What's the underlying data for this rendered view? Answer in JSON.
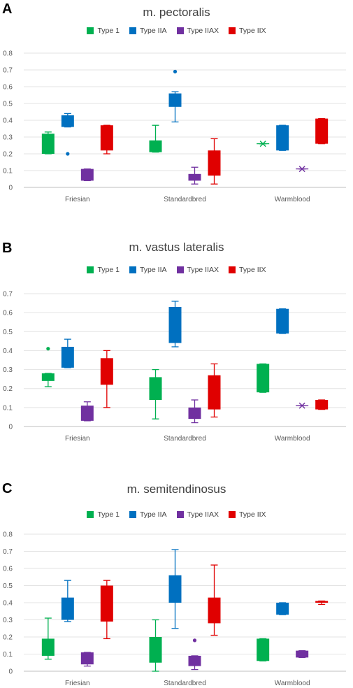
{
  "colors": {
    "type1": "#00b050",
    "type2a": "#0070c0",
    "type2ax": "#7030a0",
    "type2x": "#e00000"
  },
  "chart_data": [
    {
      "type": "box",
      "panel_label": "A",
      "title": "m. pectoralis",
      "categories": [
        "Friesian",
        "Standardbred",
        "Warmblood"
      ],
      "ylim": [
        0,
        0.8
      ],
      "yticks": [
        "0",
        "0.1",
        "0.2",
        "0.3",
        "0.4",
        "0.5",
        "0.6",
        "0.7",
        "0.8"
      ],
      "grid": true,
      "legend_position": "top",
      "series": [
        {
          "name": "Type 1",
          "color": "#00b050",
          "boxes": [
            {
              "min": 0.2,
              "q1": 0.2,
              "q3": 0.32,
              "max": 0.33,
              "outliers": []
            },
            {
              "min": 0.21,
              "q1": 0.21,
              "q3": 0.28,
              "max": 0.37,
              "outliers": []
            },
            {
              "min": 0.26,
              "q1": 0.26,
              "q3": 0.26,
              "max": 0.26,
              "outliers": []
            }
          ]
        },
        {
          "name": "Type IIA",
          "color": "#0070c0",
          "boxes": [
            {
              "min": 0.36,
              "q1": 0.36,
              "q3": 0.43,
              "max": 0.44,
              "outliers": [
                0.2
              ]
            },
            {
              "min": 0.39,
              "q1": 0.48,
              "q3": 0.56,
              "max": 0.57,
              "outliers": [
                0.69
              ]
            },
            {
              "min": 0.22,
              "q1": 0.22,
              "q3": 0.37,
              "max": 0.37,
              "outliers": []
            }
          ]
        },
        {
          "name": "Type IIAX",
          "color": "#7030a0",
          "boxes": [
            {
              "min": 0.04,
              "q1": 0.04,
              "q3": 0.11,
              "max": 0.11,
              "outliers": []
            },
            {
              "min": 0.02,
              "q1": 0.04,
              "q3": 0.08,
              "max": 0.12,
              "outliers": []
            },
            {
              "min": 0.11,
              "q1": 0.11,
              "q3": 0.11,
              "max": 0.11,
              "outliers": []
            }
          ]
        },
        {
          "name": "Type IIX",
          "color": "#e00000",
          "boxes": [
            {
              "min": 0.2,
              "q1": 0.22,
              "q3": 0.37,
              "max": 0.37,
              "outliers": []
            },
            {
              "min": 0.02,
              "q1": 0.07,
              "q3": 0.22,
              "max": 0.29,
              "outliers": []
            },
            {
              "min": 0.26,
              "q1": 0.26,
              "q3": 0.41,
              "max": 0.41,
              "outliers": []
            }
          ]
        }
      ]
    },
    {
      "type": "box",
      "panel_label": "B",
      "title": "m. vastus lateralis",
      "categories": [
        "Friesian",
        "Standardbred",
        "Warmblood"
      ],
      "ylim": [
        0,
        0.7
      ],
      "yticks": [
        "0",
        "0.1",
        "0.2",
        "0.3",
        "0.4",
        "0.5",
        "0.6",
        "0.7"
      ],
      "grid": true,
      "legend_position": "top",
      "series": [
        {
          "name": "Type 1",
          "color": "#00b050",
          "boxes": [
            {
              "min": 0.21,
              "q1": 0.24,
              "q3": 0.28,
              "max": 0.28,
              "outliers": [
                0.41
              ]
            },
            {
              "min": 0.04,
              "q1": 0.14,
              "q3": 0.26,
              "max": 0.3,
              "outliers": []
            },
            {
              "min": 0.18,
              "q1": 0.18,
              "q3": 0.33,
              "max": 0.33,
              "outliers": []
            }
          ]
        },
        {
          "name": "Type IIA",
          "color": "#0070c0",
          "boxes": [
            {
              "min": 0.31,
              "q1": 0.31,
              "q3": 0.42,
              "max": 0.46,
              "outliers": []
            },
            {
              "min": 0.42,
              "q1": 0.44,
              "q3": 0.63,
              "max": 0.66,
              "outliers": []
            },
            {
              "min": 0.49,
              "q1": 0.49,
              "q3": 0.62,
              "max": 0.62,
              "outliers": []
            }
          ]
        },
        {
          "name": "Type IIAX",
          "color": "#7030a0",
          "boxes": [
            {
              "min": 0.03,
              "q1": 0.03,
              "q3": 0.11,
              "max": 0.13,
              "outliers": []
            },
            {
              "min": 0.02,
              "q1": 0.04,
              "q3": 0.1,
              "max": 0.14,
              "outliers": []
            },
            {
              "min": 0.11,
              "q1": 0.11,
              "q3": 0.11,
              "max": 0.11,
              "outliers": []
            }
          ]
        },
        {
          "name": "Type IIX",
          "color": "#e00000",
          "boxes": [
            {
              "min": 0.1,
              "q1": 0.22,
              "q3": 0.36,
              "max": 0.4,
              "outliers": []
            },
            {
              "min": 0.05,
              "q1": 0.09,
              "q3": 0.27,
              "max": 0.33,
              "outliers": []
            },
            {
              "min": 0.09,
              "q1": 0.09,
              "q3": 0.14,
              "max": 0.14,
              "outliers": []
            }
          ]
        }
      ]
    },
    {
      "type": "box",
      "panel_label": "C",
      "title": "m. semitendinosus",
      "categories": [
        "Friesian",
        "Standardbred",
        "Warmblood"
      ],
      "ylim": [
        0,
        0.8
      ],
      "yticks": [
        "0",
        "0.1",
        "0.2",
        "0.3",
        "0.4",
        "0.5",
        "0.6",
        "0.7",
        "0.8"
      ],
      "grid": true,
      "legend_position": "top",
      "series": [
        {
          "name": "Type 1",
          "color": "#00b050",
          "boxes": [
            {
              "min": 0.07,
              "q1": 0.09,
              "q3": 0.19,
              "max": 0.31,
              "outliers": []
            },
            {
              "min": 0.0,
              "q1": 0.05,
              "q3": 0.2,
              "max": 0.3,
              "outliers": []
            },
            {
              "min": 0.06,
              "q1": 0.06,
              "q3": 0.19,
              "max": 0.19,
              "outliers": []
            }
          ]
        },
        {
          "name": "Type IIA",
          "color": "#0070c0",
          "boxes": [
            {
              "min": 0.29,
              "q1": 0.3,
              "q3": 0.43,
              "max": 0.53,
              "outliers": []
            },
            {
              "min": 0.25,
              "q1": 0.4,
              "q3": 0.56,
              "max": 0.71,
              "outliers": []
            },
            {
              "min": 0.33,
              "q1": 0.33,
              "q3": 0.4,
              "max": 0.4,
              "outliers": []
            }
          ]
        },
        {
          "name": "Type IIAX",
          "color": "#7030a0",
          "boxes": [
            {
              "min": 0.03,
              "q1": 0.04,
              "q3": 0.11,
              "max": 0.11,
              "outliers": []
            },
            {
              "min": 0.01,
              "q1": 0.03,
              "q3": 0.09,
              "max": 0.09,
              "outliers": [
                0.18
              ]
            },
            {
              "min": 0.08,
              "q1": 0.08,
              "q3": 0.12,
              "max": 0.12,
              "outliers": []
            }
          ]
        },
        {
          "name": "Type IIX",
          "color": "#e00000",
          "boxes": [
            {
              "min": 0.19,
              "q1": 0.29,
              "q3": 0.5,
              "max": 0.53,
              "outliers": []
            },
            {
              "min": 0.21,
              "q1": 0.28,
              "q3": 0.43,
              "max": 0.62,
              "outliers": []
            },
            {
              "min": 0.39,
              "q1": 0.4,
              "q3": 0.41,
              "max": 0.41,
              "outliers": []
            }
          ]
        }
      ]
    }
  ]
}
